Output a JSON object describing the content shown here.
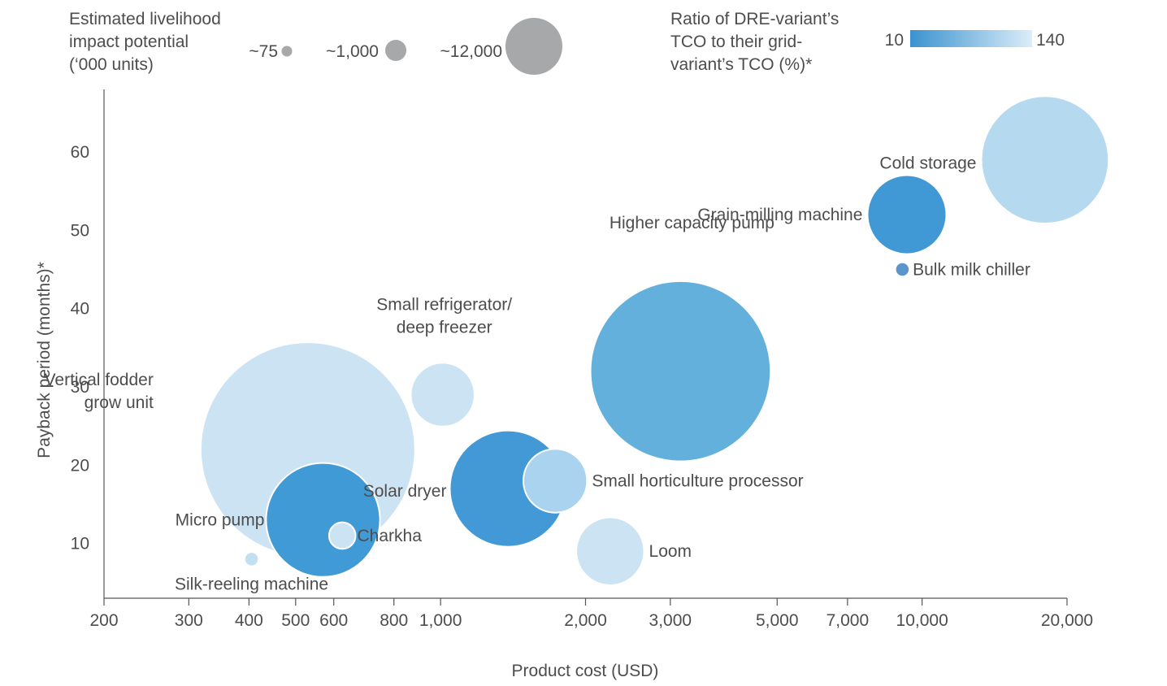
{
  "chart_data": {
    "type": "scatter",
    "subtype": "bubble",
    "xlabel": "Product cost (USD)",
    "ylabel": "Payback period (months)*",
    "x_scale": "log",
    "xlim": [
      200,
      20000
    ],
    "ylim": [
      3,
      68
    ],
    "x_ticks": [
      200,
      300,
      400,
      500,
      600,
      800,
      1000,
      2000,
      3000,
      5000,
      7000,
      10000,
      20000
    ],
    "x_tick_labels": [
      "200",
      "300",
      "400",
      "500",
      "600",
      "800",
      "1,000",
      "2,000",
      "3,000",
      "5,000",
      "7,000",
      "10,000",
      "20,000"
    ],
    "y_ticks": [
      10,
      20,
      30,
      40,
      50,
      60
    ],
    "y_tick_labels": [
      "10",
      "20",
      "30",
      "40",
      "50",
      "60"
    ],
    "grid": false,
    "size_legend": {
      "title_lines": [
        "Estimated livelihood",
        "impact potential",
        "(‘000 units)"
      ],
      "items": [
        {
          "label": "~75",
          "value": 75
        },
        {
          "label": "~1,000",
          "value": 1000
        },
        {
          "label": "~12,000",
          "value": 12000
        }
      ],
      "color": "#a7a8aa"
    },
    "color_legend": {
      "title_lines": [
        "Ratio of DRE-variant’s",
        "TCO to their grid-",
        "variant’s TCO (%)*"
      ],
      "min_label": "10",
      "max_label": "140",
      "min": 10,
      "max": 140,
      "color_min": "#3a92d0",
      "color_max": "#dcedf8"
    },
    "points": [
      {
        "name": "Cold storage",
        "label_lines": [
          "Cold storage"
        ],
        "x": 18000,
        "y": 59,
        "size": 6000,
        "ratio": 115,
        "color": "#b5d9ef"
      },
      {
        "name": "Grain-milling machine",
        "label_lines": [
          "Grain-milling machine"
        ],
        "x": 9300,
        "y": 52,
        "size": 2300,
        "ratio": 20,
        "color": "#4099d4"
      },
      {
        "name": "Bulk milk chiller",
        "label_lines": [
          "Bulk milk chiller"
        ],
        "x": 9100,
        "y": 45,
        "size": 75,
        "ratio": 45,
        "color": "#5a96cc"
      },
      {
        "name": "Higher capacity pump",
        "label_lines": [
          "Higher capacity pump"
        ],
        "x": 3150,
        "y": 32,
        "size": 12000,
        "ratio": 45,
        "color": "#64b0dd"
      },
      {
        "name": "Small refrigerator/ deep freezer",
        "label_lines": [
          "Small refrigerator/",
          "deep freezer"
        ],
        "x": 1010,
        "y": 29,
        "size": 1500,
        "ratio": 130,
        "color": "#cbe3f3"
      },
      {
        "name": "Vertical fodder grow unit",
        "label_lines": [
          "Vertical fodder",
          "grow unit"
        ],
        "x": 530,
        "y": 22,
        "size": 17000,
        "ratio": 135,
        "color": "#cbe3f3"
      },
      {
        "name": "Solar dryer",
        "label_lines": [
          "Solar dryer"
        ],
        "x": 1380,
        "y": 17,
        "size": 5000,
        "ratio": 15,
        "color": "#4299d5"
      },
      {
        "name": "Small horticulture processor",
        "label_lines": [
          "Small horticulture processor"
        ],
        "x": 1730,
        "y": 18,
        "size": 1500,
        "ratio": 110,
        "color": "#a9d3ee"
      },
      {
        "name": "Micro pump",
        "label_lines": [
          "Micro pump"
        ],
        "x": 570,
        "y": 13,
        "size": 4800,
        "ratio": 25,
        "color": "#409ad6"
      },
      {
        "name": "Charkha",
        "label_lines": [
          "Charkha"
        ],
        "x": 625,
        "y": 11,
        "size": 260,
        "ratio": 135,
        "color": "#cbe3f3"
      },
      {
        "name": "Loom",
        "label_lines": [
          "Loom"
        ],
        "x": 2250,
        "y": 9,
        "size": 1700,
        "ratio": 135,
        "color": "#cbe3f3"
      },
      {
        "name": "Silk-reeling machine",
        "label_lines": [
          "Silk-reeling machine"
        ],
        "x": 405,
        "y": 8,
        "size": 75,
        "ratio": 120,
        "color": "#c3e0f2"
      }
    ]
  }
}
